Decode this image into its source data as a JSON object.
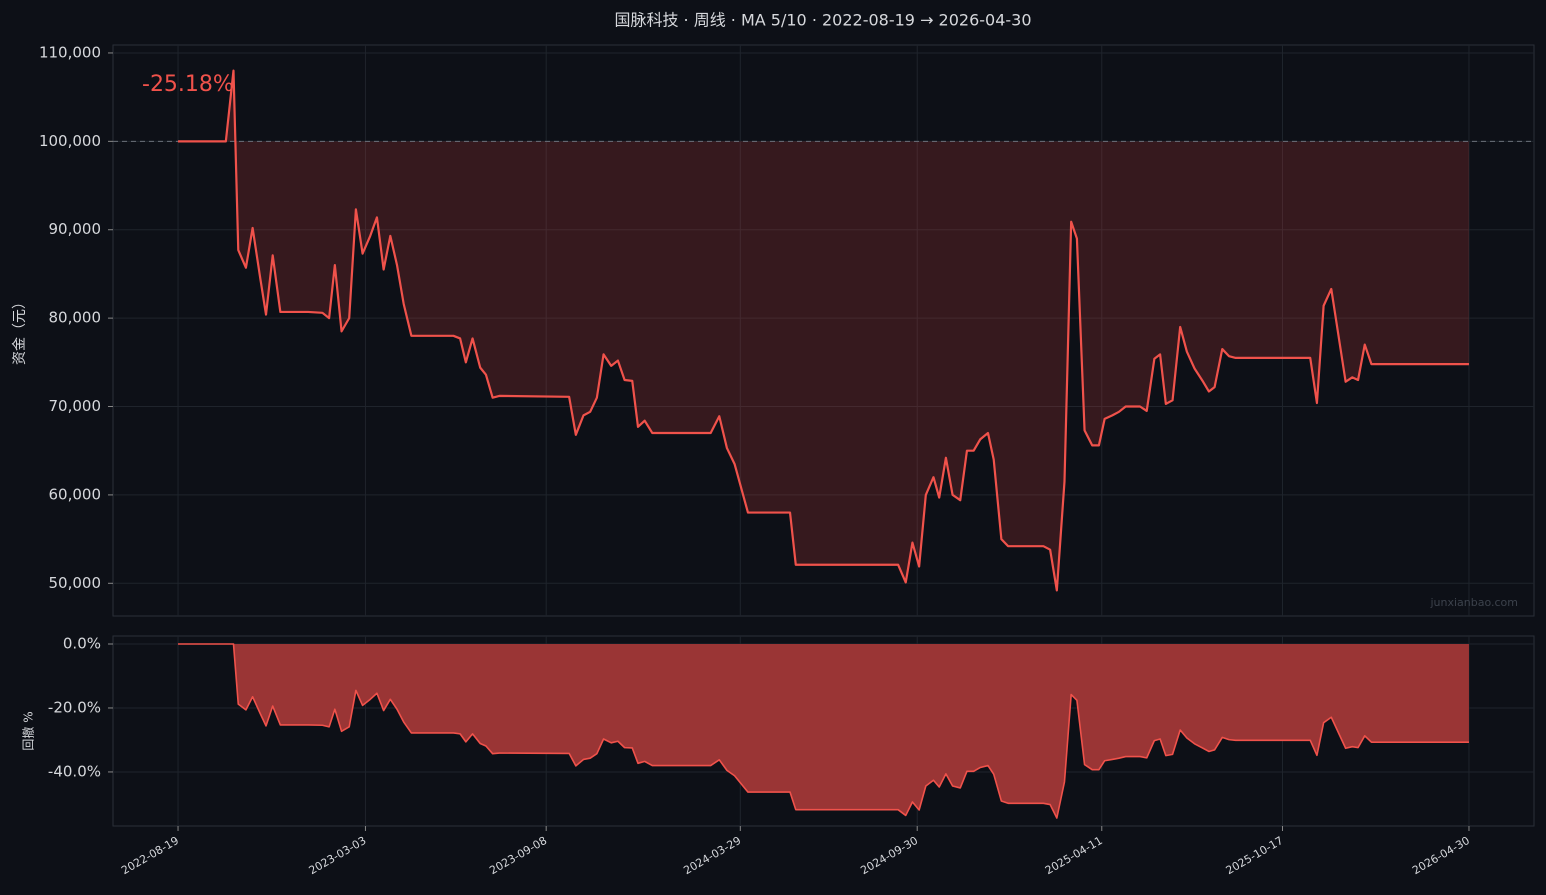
{
  "chart_data": [
    {
      "type": "line",
      "title": "国脉科技 · 周线 · MA 5/10 · 2022-08-19 → 2026-04-30",
      "ylabel": "资金（元）",
      "annotation": "-25.18%",
      "watermark": "junxianbao.com",
      "color": "#f0524b",
      "fill_color": "rgba(200,60,60,0.22)",
      "baseline": 100000,
      "grid": true,
      "ylim": [
        46300,
        110900
      ],
      "yticks": [
        {
          "value": 50000,
          "label": "50,000"
        },
        {
          "value": 60000,
          "label": "60,000"
        },
        {
          "value": 70000,
          "label": "70,000"
        },
        {
          "value": 80000,
          "label": "80,000"
        },
        {
          "value": 90000,
          "label": "90,000"
        },
        {
          "value": 100000,
          "label": "100,000"
        },
        {
          "value": 110000,
          "label": "110,000"
        }
      ],
      "x": [
        "2022-08-19",
        "2022-10-08",
        "2022-10-16",
        "2022-10-21",
        "2022-10-29",
        "2022-11-05",
        "2022-11-13",
        "2022-11-19",
        "2022-11-26",
        "2022-12-04",
        "2023-01-02",
        "2023-01-17",
        "2023-01-24",
        "2023-01-30",
        "2023-02-06",
        "2023-02-14",
        "2023-02-21",
        "2023-02-28",
        "2023-03-08",
        "2023-03-15",
        "2023-03-22",
        "2023-03-29",
        "2023-04-05",
        "2023-04-12",
        "2023-04-20",
        "2023-06-03",
        "2023-06-10",
        "2023-06-16",
        "2023-06-23",
        "2023-07-01",
        "2023-07-07",
        "2023-07-14",
        "2023-07-21",
        "2023-10-02",
        "2023-10-09",
        "2023-10-17",
        "2023-10-24",
        "2023-10-31",
        "2023-11-07",
        "2023-11-15",
        "2023-11-22",
        "2023-11-29",
        "2023-12-07",
        "2023-12-13",
        "2023-12-20",
        "2023-12-28",
        "2024-02-27",
        "2024-03-07",
        "2024-03-15",
        "2024-03-23",
        "2024-04-06",
        "2024-05-20",
        "2024-05-26",
        "2024-09-10",
        "2024-09-18",
        "2024-09-25",
        "2024-10-02",
        "2024-10-09",
        "2024-10-17",
        "2024-10-23",
        "2024-10-30",
        "2024-11-06",
        "2024-11-14",
        "2024-11-21",
        "2024-11-28",
        "2024-12-05",
        "2024-12-13",
        "2024-12-19",
        "2024-12-27",
        "2025-01-03",
        "2025-02-09",
        "2025-02-16",
        "2025-02-23",
        "2025-03-03",
        "2025-03-10",
        "2025-03-16",
        "2025-03-24",
        "2025-04-01",
        "2025-04-08",
        "2025-04-14",
        "2025-04-22",
        "2025-04-29",
        "2025-05-06",
        "2025-05-21",
        "2025-05-28",
        "2025-06-05",
        "2025-06-11",
        "2025-06-17",
        "2025-06-24",
        "2025-07-02",
        "2025-07-09",
        "2025-07-17",
        "2025-07-26",
        "2025-08-01",
        "2025-08-07",
        "2025-08-15",
        "2025-08-22",
        "2025-08-29",
        "2025-11-15",
        "2025-11-22",
        "2025-11-29",
        "2025-12-07",
        "2025-12-22",
        "2025-12-29",
        "2026-01-04",
        "2026-01-11",
        "2026-01-18",
        "2026-04-30"
      ],
      "values": [
        100000,
        100000,
        108000,
        87700,
        85700,
        90200,
        84500,
        80400,
        87100,
        80700,
        80700,
        80600,
        80000,
        86000,
        78500,
        80000,
        92300,
        87300,
        89300,
        91400,
        85500,
        89300,
        86000,
        81600,
        78000,
        78000,
        77700,
        75000,
        77700,
        74400,
        73600,
        71000,
        71200,
        71100,
        66800,
        69000,
        69400,
        71000,
        75900,
        74600,
        75200,
        73000,
        72900,
        67700,
        68400,
        67000,
        67000,
        68900,
        65300,
        63500,
        58000,
        58000,
        52100,
        52100,
        50100,
        54600,
        51900,
        60000,
        62000,
        59700,
        64200,
        60000,
        59400,
        65000,
        65000,
        66300,
        67000,
        64000,
        55000,
        54200,
        54200,
        53800,
        49200,
        61500,
        90900,
        89000,
        67300,
        65600,
        65600,
        68600,
        69000,
        69400,
        70000,
        70000,
        69500,
        75400,
        75900,
        70300,
        70700,
        79000,
        76200,
        74300,
        72800,
        71700,
        72200,
        76500,
        75700,
        75500,
        75500,
        70400,
        81400,
        83300,
        72800,
        73300,
        73000,
        77000,
        74800,
        74800
      ]
    },
    {
      "type": "area",
      "ylabel": "回撤 %",
      "color": "#f0524b",
      "fill_color": "#9a3535",
      "grid": true,
      "ylim": [
        -56.9,
        2.5
      ],
      "yticks": [
        {
          "value": -40,
          "label": "-40.0%"
        },
        {
          "value": -20,
          "label": "-20.0%"
        },
        {
          "value": 0,
          "label": "0.0%"
        }
      ],
      "xlim": [
        "2022-06-12",
        "2026-07-07"
      ],
      "xticks": [
        "2022-08-19",
        "2023-03-03",
        "2023-09-08",
        "2024-03-29",
        "2024-09-30",
        "2025-04-11",
        "2025-10-17",
        "2026-04-30"
      ],
      "values": [
        0,
        0,
        0,
        -18.8,
        -20.6,
        -16.5,
        -21.8,
        -25.6,
        -19.4,
        -25.3,
        -25.3,
        -25.4,
        -25.9,
        -20.4,
        -27.3,
        -25.9,
        -14.5,
        -19.2,
        -17.3,
        -15.4,
        -20.8,
        -17.3,
        -20.4,
        -24.4,
        -27.8,
        -27.8,
        -28.1,
        -30.6,
        -28.1,
        -31.1,
        -31.9,
        -34.3,
        -34.1,
        -34.2,
        -38.1,
        -36.1,
        -35.7,
        -34.3,
        -29.7,
        -30.9,
        -30.4,
        -32.4,
        -32.5,
        -37.3,
        -36.7,
        -38.0,
        -38.0,
        -36.2,
        -39.5,
        -41.2,
        -46.3,
        -46.3,
        -51.8,
        -51.8,
        -53.6,
        -49.4,
        -51.9,
        -44.4,
        -42.6,
        -44.7,
        -40.6,
        -44.4,
        -45.0,
        -39.8,
        -39.8,
        -38.6,
        -38.0,
        -40.7,
        -49.1,
        -49.8,
        -49.8,
        -50.2,
        -54.4,
        -43.1,
        -15.8,
        -17.6,
        -37.7,
        -39.3,
        -39.3,
        -36.5,
        -36.1,
        -35.7,
        -35.2,
        -35.2,
        -35.6,
        -30.2,
        -29.7,
        -34.9,
        -34.5,
        -26.9,
        -29.4,
        -31.2,
        -32.6,
        -33.6,
        -33.1,
        -29.2,
        -29.9,
        -30.1,
        -30.1,
        -34.8,
        -24.6,
        -22.9,
        -32.6,
        -32.1,
        -32.4,
        -28.7,
        -30.7,
        -30.7
      ]
    }
  ]
}
